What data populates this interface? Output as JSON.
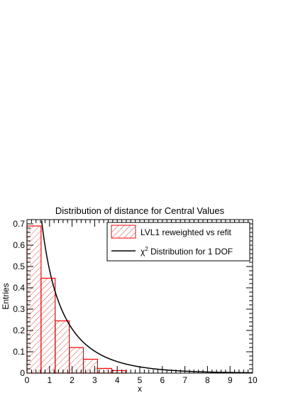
{
  "chart_data": {
    "type": "bar",
    "title": "Distribution of distance for Central Values",
    "xlabel": "x",
    "ylabel": "Entries",
    "xlim": [
      0,
      10
    ],
    "ylim": [
      0,
      0.72
    ],
    "x_ticks": [
      0,
      1,
      2,
      3,
      4,
      5,
      6,
      7,
      8,
      9,
      10
    ],
    "y_ticks": [
      0,
      0.1,
      0.2,
      0.3,
      0.4,
      0.5,
      0.6,
      0.7
    ],
    "bin_edges": [
      0,
      0.625,
      1.25,
      1.875,
      2.5,
      3.125,
      3.75,
      4.375
    ],
    "series": [
      {
        "name": "LVL1 reweighted vs refit",
        "kind": "histogram",
        "color": "#ff0000",
        "fill": "hatched",
        "values": [
          0.69,
          0.445,
          0.245,
          0.12,
          0.065,
          0.022,
          0.012
        ]
      },
      {
        "name": "χ² Distribution for 1 DOF",
        "kind": "curve",
        "color": "#000000",
        "function": "chi2_pdf_1dof_x2"
      }
    ],
    "legend": {
      "position": "top-right",
      "entries": [
        {
          "symbol": "hatched-box",
          "label": "LVL1 reweighted vs refit"
        },
        {
          "symbol": "line",
          "label_prefix": "χ",
          "label_sup": "2",
          "label_rest": " Distribution for 1 DOF"
        }
      ]
    },
    "grid": false
  }
}
